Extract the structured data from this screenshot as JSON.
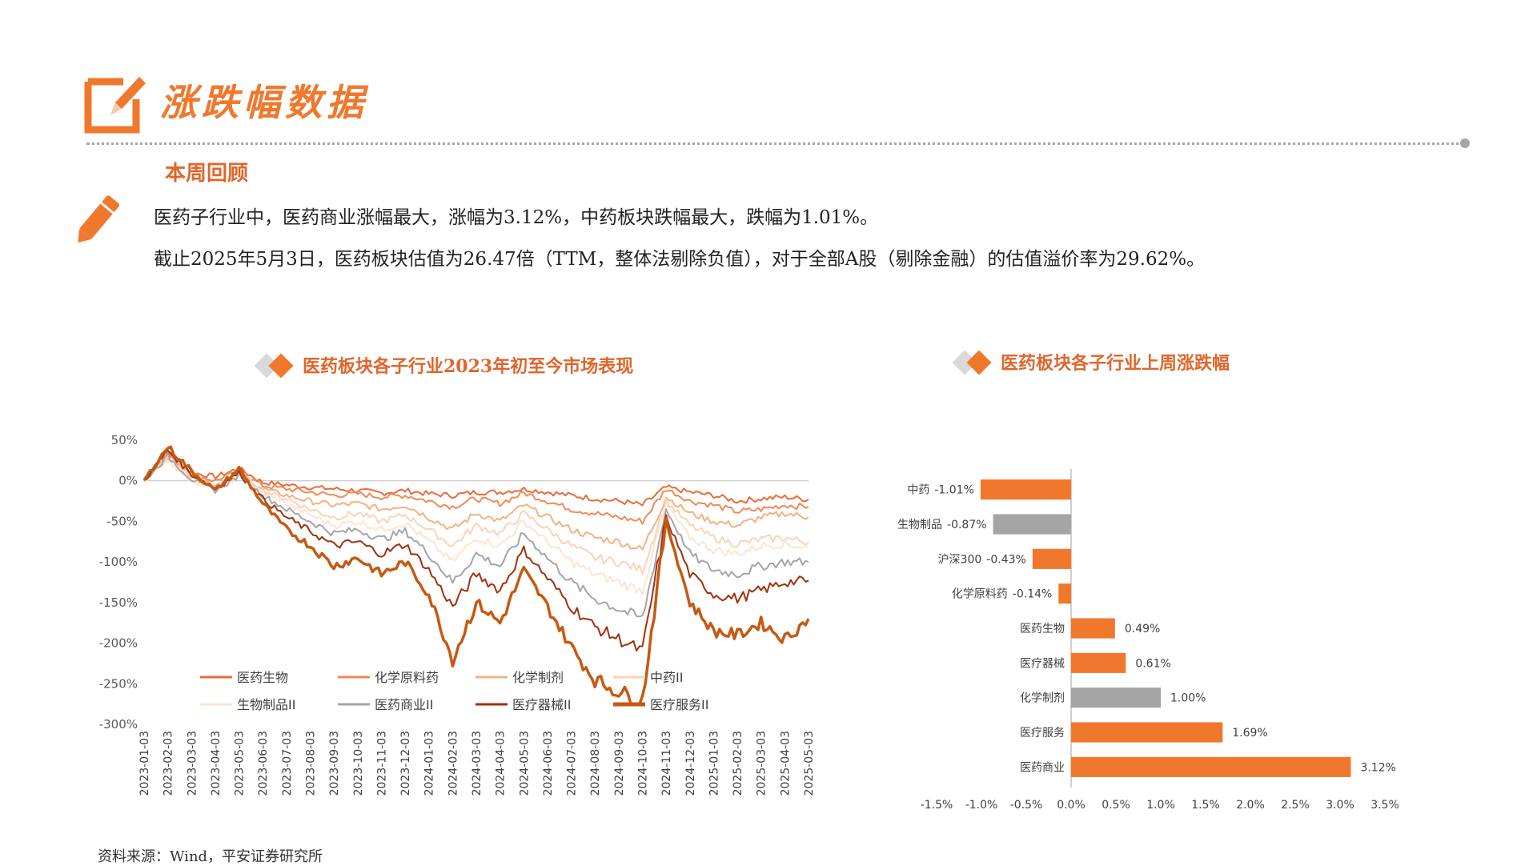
{
  "page": {
    "title": "涨跌幅数据",
    "section_label": "本周回顾",
    "summary": [
      "医药子行业中，医药商业涨幅最大，涨幅为3.12%，中药板块跌幅最大，跌幅为1.01%。",
      "截止2025年5月3日，医药板块估值为26.47倍（TTM，整体法剔除负值），对于全部A股（剔除金融）的估值溢价率为29.62%。"
    ],
    "source": "资料来源：Wind，平安证券研究所"
  },
  "colors": {
    "accent": "#f0782d",
    "gray": "#a6a6a6",
    "bar_gray": "#a5a5a5"
  },
  "chart_data": [
    {
      "type": "line",
      "title": "医药板块各子行业2023年初至今市场表现",
      "ylim": [
        -300,
        50
      ],
      "y_ticks": [
        "50%",
        "0%",
        "-50%",
        "-100%",
        "-150%",
        "-200%",
        "-250%",
        "-300%"
      ],
      "x_ticks": [
        "2023-01-03",
        "2023-02-03",
        "2023-03-03",
        "2023-04-03",
        "2023-05-03",
        "2023-06-03",
        "2023-07-03",
        "2023-08-03",
        "2023-09-03",
        "2023-10-03",
        "2023-11-03",
        "2023-12-03",
        "2024-01-03",
        "2024-02-03",
        "2024-03-03",
        "2024-04-03",
        "2024-05-03",
        "2024-06-03",
        "2024-07-03",
        "2024-08-03",
        "2024-09-03",
        "2024-10-03",
        "2024-11-03",
        "2024-12-03",
        "2025-01-03",
        "2025-02-03",
        "2025-03-03",
        "2025-04-03",
        "2025-05-03"
      ],
      "series": [
        {
          "name": "医药生物",
          "color": "#e96b3c",
          "width": 2.5,
          "values": [
            0,
            35,
            10,
            5,
            15,
            -2,
            -5,
            -8,
            -10,
            -12,
            -15,
            -12,
            -16,
            -18,
            -14,
            -14,
            -10,
            -14,
            -18,
            -22,
            -25,
            -30,
            -8,
            -14,
            -18,
            -25,
            -22,
            -20,
            -23
          ]
        },
        {
          "name": "化学原料药",
          "color": "#f08a54",
          "width": 2.5,
          "values": [
            0,
            32,
            8,
            0,
            12,
            -6,
            -10,
            -14,
            -18,
            -16,
            -20,
            -18,
            -25,
            -32,
            -22,
            -28,
            -15,
            -25,
            -35,
            -40,
            -45,
            -50,
            -10,
            -25,
            -30,
            -38,
            -35,
            -30,
            -32
          ]
        },
        {
          "name": "化学制剂",
          "color": "#f4b183",
          "width": 2.5,
          "values": [
            0,
            30,
            5,
            -5,
            10,
            -10,
            -18,
            -25,
            -30,
            -28,
            -35,
            -30,
            -45,
            -60,
            -40,
            -50,
            -30,
            -45,
            -60,
            -70,
            -75,
            -85,
            -20,
            -40,
            -50,
            -55,
            -45,
            -40,
            -45
          ]
        },
        {
          "name": "中药II",
          "color": "#fbd3b6",
          "width": 2.5,
          "values": [
            0,
            28,
            5,
            -8,
            8,
            -12,
            -22,
            -35,
            -45,
            -40,
            -50,
            -42,
            -60,
            -80,
            -55,
            -65,
            -40,
            -60,
            -80,
            -95,
            -100,
            -110,
            -25,
            -55,
            -70,
            -78,
            -72,
            -70,
            -76
          ]
        },
        {
          "name": "生物制品II",
          "color": "#fde4d1",
          "width": 2.5,
          "values": [
            0,
            26,
            0,
            -10,
            5,
            -15,
            -28,
            -42,
            -55,
            -50,
            -60,
            -52,
            -75,
            -100,
            -70,
            -80,
            -50,
            -75,
            -100,
            -115,
            -125,
            -135,
            -30,
            -70,
            -85,
            -90,
            -80,
            -78,
            -82
          ]
        },
        {
          "name": "医药商业II",
          "color": "#a5a5a5",
          "width": 2.5,
          "values": [
            0,
            30,
            2,
            -12,
            6,
            -18,
            -35,
            -50,
            -65,
            -60,
            -72,
            -62,
            -90,
            -125,
            -90,
            -105,
            -65,
            -95,
            -125,
            -145,
            -158,
            -170,
            -35,
            -90,
            -110,
            -115,
            -105,
            -100,
            -100
          ]
        },
        {
          "name": "医疗器械II",
          "color": "#a0300f",
          "width": 2.5,
          "values": [
            0,
            38,
            8,
            -10,
            10,
            -22,
            -45,
            -62,
            -80,
            -75,
            -90,
            -78,
            -110,
            -155,
            -115,
            -135,
            -85,
            -120,
            -155,
            -180,
            -195,
            -210,
            -45,
            -115,
            -140,
            -145,
            -135,
            -125,
            -123
          ]
        },
        {
          "name": "医疗服务II",
          "color": "#c65911",
          "width": 4,
          "values": [
            0,
            42,
            12,
            -12,
            15,
            -28,
            -60,
            -80,
            -105,
            -95,
            -115,
            -100,
            -140,
            -220,
            -150,
            -175,
            -110,
            -155,
            -205,
            -245,
            -260,
            -270,
            -50,
            -150,
            -185,
            -190,
            -175,
            -195,
            -170
          ]
        }
      ]
    },
    {
      "type": "bar",
      "orientation": "horizontal",
      "title": "医药板块各子行业上周涨跌幅",
      "xlim": [
        -1.5,
        3.5
      ],
      "x_ticks": [
        "-1.5%",
        "-1.0%",
        "-0.5%",
        "0.0%",
        "0.5%",
        "1.0%",
        "1.5%",
        "2.0%",
        "2.5%",
        "3.0%",
        "3.5%"
      ],
      "categories": [
        "中药",
        "生物制品",
        "沪深300",
        "化学原料药",
        "医药生物",
        "医疗器械",
        "化学制剂",
        "医疗服务",
        "医药商业"
      ],
      "values": [
        -1.01,
        -0.87,
        -0.43,
        -0.14,
        0.49,
        0.61,
        1.0,
        1.69,
        3.12
      ],
      "labels": [
        "-1.01%",
        "-0.87%",
        "-0.43%",
        "-0.14%",
        "0.49%",
        "0.61%",
        "1.00%",
        "1.69%",
        "3.12%"
      ],
      "bar_colors": [
        "#f0782d",
        "#a5a5a5",
        "#f0782d",
        "#f0782d",
        "#f0782d",
        "#f0782d",
        "#a5a5a5",
        "#f0782d",
        "#f0782d"
      ]
    }
  ]
}
